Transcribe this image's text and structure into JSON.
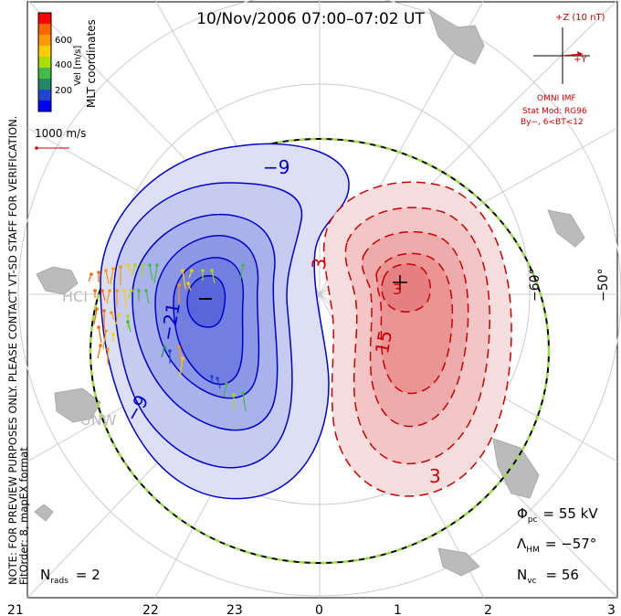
{
  "title": "10/Nov/2006 07:00–07:02 UT",
  "colorbar": {
    "ticks": [
      "600",
      "400",
      "200"
    ],
    "unit_label": "Vel [m/s]",
    "colors": [
      "#ff0000",
      "#ff7700",
      "#ffbb00",
      "#ffff00",
      "#88dd00",
      "#22cc44",
      "#228866",
      "#2255bb",
      "#0000ff"
    ]
  },
  "coord_label": "MLT coordinates",
  "verification_note": "NOTE: FOR PREVIEW PURPOSES ONLY. PLEASE CONTACT VT-SD STAFF FOR VERIFICATION.",
  "fit_note": "FitOrder: 8, mapEX format",
  "vector_scale_label": "1000 m/s",
  "imf": {
    "z_label": "+Z (10 nT)",
    "y_label": "+Y",
    "source": "OMNI IMF",
    "model": "Stat Mod: RG96",
    "condition": "By−, 6<BT<12"
  },
  "lat_labels": [
    "−60°",
    "−50°"
  ],
  "mlt_ticks": [
    "21",
    "22",
    "23",
    "0",
    "1",
    "2",
    "3"
  ],
  "contour_labels": {
    "neg_outer": "−9",
    "neg_mid": "−21",
    "neg_inner": "−9",
    "pos_outer": "3",
    "pos_mid": "15",
    "pos_inner": "3",
    "pos_top": "3"
  },
  "site_labels": [
    "HCI",
    "UNW"
  ],
  "stats": {
    "phi_label": "Φ",
    "phi_sub": "pc",
    "phi_value": "= 55 kV",
    "lambda_label": "Λ",
    "lambda_sub": "HM",
    "lambda_value": "= −57°",
    "nvc_label": "N",
    "nvc_sub": "vc",
    "nvc_value": "= 56",
    "nrads_label": "N",
    "nrads_sub": "rads",
    "nrads_value": "= 2"
  },
  "colors": {
    "neg_line": "#0000cc",
    "pos_line": "#cc0000",
    "neg_fill": "#4455ee",
    "pos_fill": "#ee4444",
    "hm_boundary": "#99dd44",
    "land": "#bbbbbb",
    "grid": "#cccccc"
  }
}
